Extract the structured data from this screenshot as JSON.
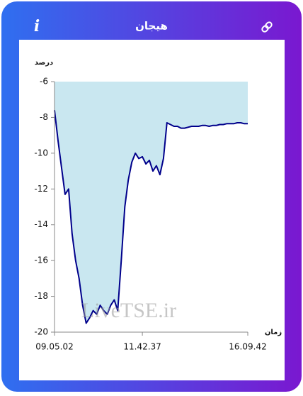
{
  "header": {
    "title": "هیجان",
    "info_icon": "i"
  },
  "chart_data": {
    "type": "area",
    "y_label": "درصد",
    "x_label": "زمان",
    "watermark": "LiveTSE.ir",
    "categories": [
      "09.05.02",
      null,
      null,
      null,
      null,
      null,
      null,
      null,
      null,
      null,
      null,
      null,
      null,
      null,
      null,
      null,
      null,
      null,
      null,
      null,
      null,
      null,
      null,
      null,
      null,
      "11.42.37",
      null,
      null,
      null,
      null,
      null,
      null,
      null,
      null,
      null,
      null,
      null,
      null,
      null,
      null,
      null,
      null,
      null,
      null,
      null,
      null,
      null,
      null,
      null,
      null,
      null,
      null,
      null,
      null,
      null,
      "16.09.42"
    ],
    "values": [
      -7.6,
      -9.3,
      -10.8,
      -12.3,
      -12.0,
      -14.5,
      -16.0,
      -17.0,
      -18.5,
      -19.5,
      -19.2,
      -18.8,
      -19.0,
      -18.5,
      -18.8,
      -19.0,
      -18.5,
      -18.2,
      -18.8,
      -16.0,
      -13.0,
      -11.5,
      -10.5,
      -10.0,
      -10.3,
      -10.2,
      -10.6,
      -10.4,
      -11.0,
      -10.7,
      -11.2,
      -10.3,
      -8.3,
      -8.4,
      -8.5,
      -8.5,
      -8.6,
      -8.6,
      -8.55,
      -8.5,
      -8.5,
      -8.5,
      -8.45,
      -8.45,
      -8.5,
      -8.45,
      -8.45,
      -8.4,
      -8.4,
      -8.35,
      -8.35,
      -8.35,
      -8.3,
      -8.3,
      -8.35,
      -8.35
    ],
    "color": "#00008b",
    "fill_color": "#c9e7f0",
    "ylim": [
      -20,
      -6
    ],
    "yticks": [
      -20,
      -18,
      -16,
      -14,
      -12,
      -10,
      -8,
      -6
    ],
    "grid": false
  }
}
